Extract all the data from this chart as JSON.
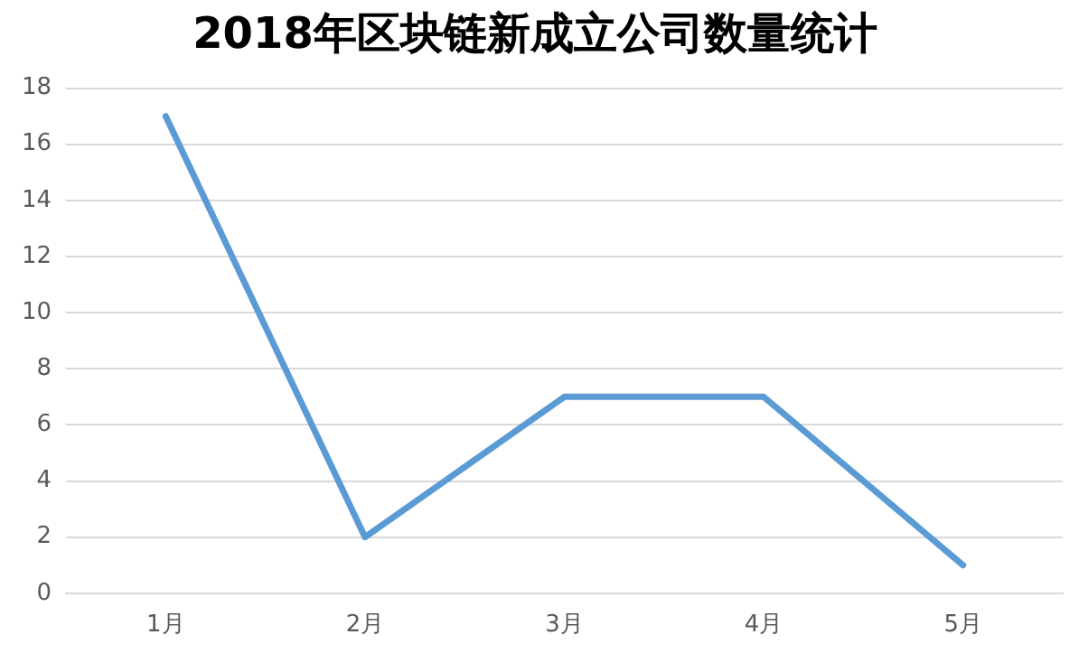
{
  "chart_data": {
    "type": "line",
    "title": "2018年区块链新成立公司数量统计",
    "categories": [
      "1月",
      "2月",
      "3月",
      "4月",
      "5月"
    ],
    "series": [
      {
        "color": "#5b9bd5",
        "values": [
          17,
          2,
          7,
          7,
          1
        ]
      }
    ],
    "ylim": [
      0,
      18
    ],
    "yticks": [
      0,
      2,
      4,
      6,
      8,
      10,
      12,
      14,
      16,
      18
    ],
    "grid": "y",
    "legend": false,
    "marker": "none",
    "line_style": "solid"
  }
}
